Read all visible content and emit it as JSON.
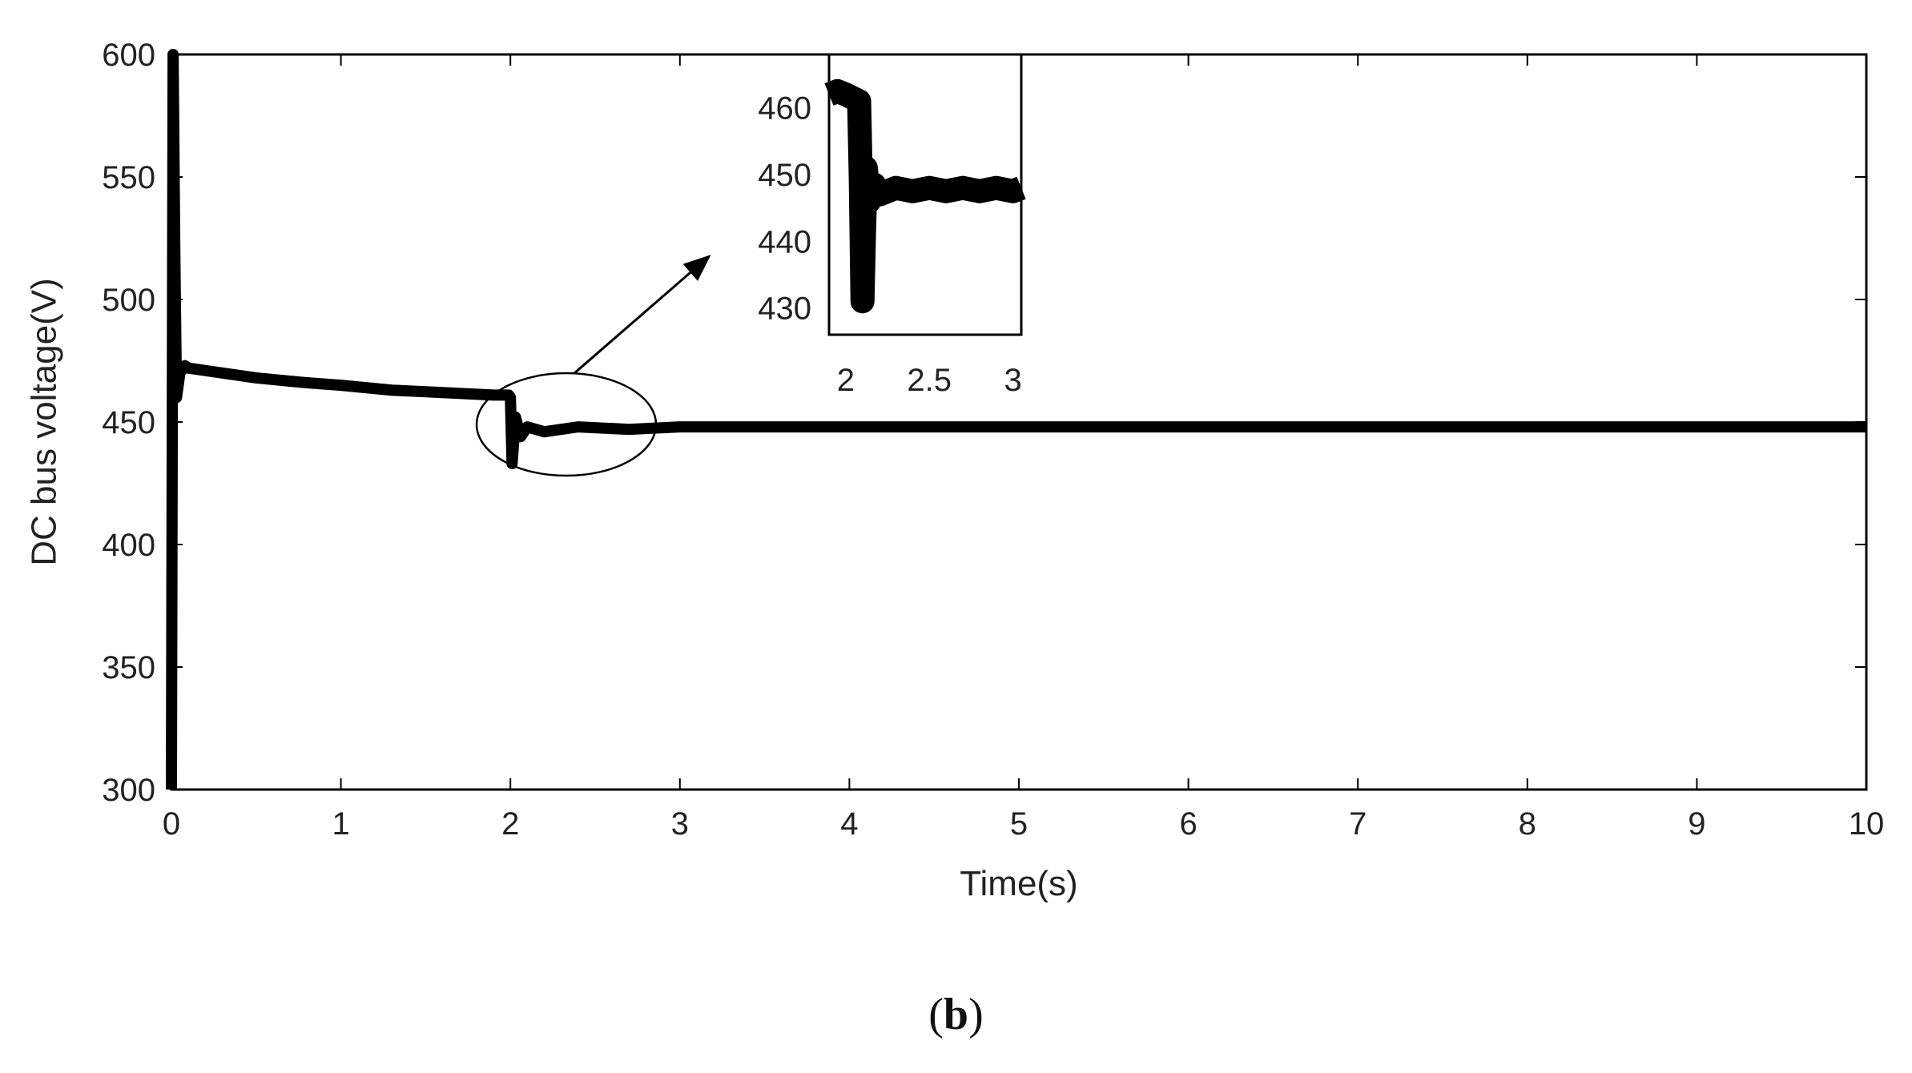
{
  "chart_data": {
    "type": "line",
    "xlabel": "Time(s)",
    "ylabel": "DC bus voltage(V)",
    "xlim": [
      0,
      10
    ],
    "ylim": [
      300,
      600
    ],
    "xticks": [
      0,
      1,
      2,
      3,
      4,
      5,
      6,
      7,
      8,
      9,
      10
    ],
    "yticks": [
      300,
      350,
      400,
      450,
      500,
      550,
      600
    ],
    "grid": false,
    "series": [
      {
        "x": [
          0,
          0.01,
          0.02,
          0.03,
          0.05,
          0.08,
          0.1,
          0.3,
          0.5,
          0.8,
          1.0,
          1.3,
          1.6,
          1.9,
          1.99,
          2.0,
          2.01,
          2.03,
          2.06,
          2.1,
          2.2,
          2.4,
          2.7,
          3,
          4,
          5,
          6,
          7,
          8,
          9,
          10
        ],
        "y": [
          300,
          600,
          520,
          460,
          470,
          473,
          472,
          470,
          468,
          466,
          465,
          463,
          462,
          461,
          461,
          460,
          433,
          452,
          444,
          448,
          446,
          448,
          447,
          448,
          448,
          448,
          448,
          448,
          448,
          448,
          448
        ],
        "band": 4
      }
    ],
    "annotation": {
      "type": "ellipse-callout",
      "ellipse_center": [
        2.33,
        449
      ],
      "arrow_target": "inset"
    },
    "inset": {
      "type": "line",
      "xlim": [
        1.9,
        3.05
      ],
      "ylim": [
        426,
        468
      ],
      "xticks": [
        2,
        2.5,
        3
      ],
      "xtick_labels": [
        "2",
        "2.5",
        "3"
      ],
      "yticks": [
        430,
        440,
        450,
        460
      ],
      "series": [
        {
          "x": [
            1.9,
            1.95,
            2.0,
            2.08,
            2.09,
            2.1,
            2.11,
            2.12,
            2.14,
            2.17,
            2.2,
            2.3,
            2.4,
            2.5,
            2.6,
            2.7,
            2.8,
            2.9,
            3.0,
            3.05
          ],
          "y": [
            462,
            462.5,
            462,
            461,
            449,
            431,
            442,
            451,
            446,
            448.5,
            447,
            448,
            447.5,
            448,
            447.5,
            448,
            447.5,
            448,
            447.5,
            448
          ],
          "band": 3.5
        }
      ]
    }
  },
  "caption": {
    "text": "b"
  }
}
